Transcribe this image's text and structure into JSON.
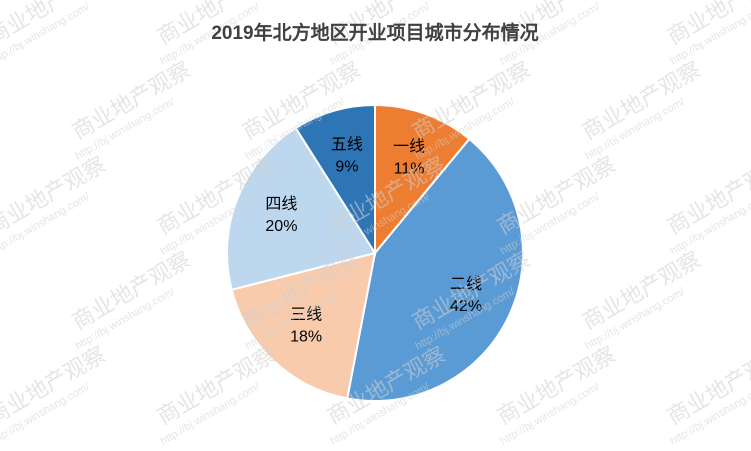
{
  "chart_data": {
    "type": "pie",
    "title": "2019年北方地区开业项目城市分布情况",
    "categories": [
      "一线",
      "二线",
      "三线",
      "四线",
      "五线"
    ],
    "values": [
      11,
      42,
      18,
      20,
      9
    ],
    "value_labels": [
      "11%",
      "42%",
      "18%",
      "20%",
      "9%"
    ],
    "colors": [
      "#ed7d31",
      "#5b9bd5",
      "#f8cbad",
      "#bdd7ee",
      "#2e75b6"
    ],
    "watermark": [
      "商业地产观察",
      "http://bj.winshang.com/"
    ]
  }
}
